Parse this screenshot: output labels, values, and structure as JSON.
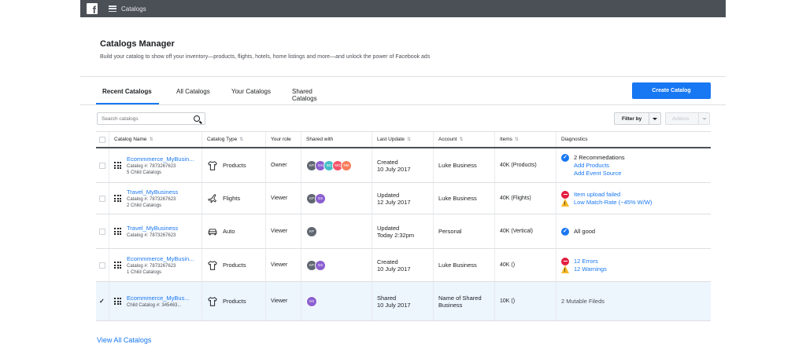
{
  "topbar": {
    "title": "Catalogs",
    "logo": "f"
  },
  "header": {
    "title": "Catalogs Manager",
    "subtitle": "Build your catalog to show off your inventory—products, flights, hotels, home listings and more—and unlock the power of Facebook ads"
  },
  "tabs": [
    "Recent Catalogs",
    "All Catalogs",
    "Your Catalogs",
    "Shared Catalogs"
  ],
  "active_tab": "Recent Catalogs",
  "create_button": "Create Catalog",
  "search": {
    "placeholder": "Search catalogs",
    "value": ""
  },
  "filter_label": "Filter by",
  "actions_label": "Actions",
  "columns": [
    "Catalog Name",
    "Catalog Type",
    "Your role",
    "Shared with",
    "Last Update",
    "Account",
    "Items",
    "Diagnostics"
  ],
  "sort_glyph": "⇅",
  "check_glyph": "✓",
  "rows": [
    {
      "name": "Ecommmerce_MyBusin...",
      "catalog_id": "Catalog #: 7873267623",
      "children": "5 Child Catalogs",
      "type": "Products",
      "type_icon": "shirt-icon",
      "role": "Owner",
      "shared": [
        {
          "i": "KP",
          "c": "#606770"
        },
        {
          "i": "GS",
          "c": "#8b5fd0"
        },
        {
          "i": "BC",
          "c": "#44bec7"
        },
        {
          "i": "MG",
          "c": "#f35369"
        },
        {
          "i": "NM",
          "c": "#fa7e5e"
        }
      ],
      "update_status": "Created",
      "update_date": "10 July 2017",
      "account": "Luke Business",
      "items": "40K (Products)",
      "diagnostics": [
        {
          "icon": "blue-check",
          "text": "2 Recommedations",
          "style": "text"
        },
        {
          "icon": "",
          "text": "Add Products",
          "style": "link"
        },
        {
          "icon": "",
          "text": "Add Event Source",
          "style": "link"
        }
      ],
      "checked": false
    },
    {
      "name": "Travel_MyBusiness",
      "catalog_id": "Catalog #: 7873267623",
      "children": "2 Child Catalogs",
      "type": "Flights",
      "type_icon": "airplane-icon",
      "role": "Viewer",
      "shared": [
        {
          "i": "KP",
          "c": "#606770"
        },
        {
          "i": "GS",
          "c": "#8b5fd0"
        }
      ],
      "update_status": "Updated",
      "update_date": "12 July 2017",
      "account": "Luke Business",
      "items": "40K (Flights)",
      "diagnostics": [
        {
          "icon": "red-minus",
          "text": "Item upload failed",
          "style": "link"
        },
        {
          "icon": "warning",
          "text": "Low Match-Rate (~45% W/W)",
          "style": "link"
        }
      ],
      "checked": false
    },
    {
      "name": "Travel_MyBusiness",
      "catalog_id": "Catalog #: 7873267623",
      "children": "",
      "type": "Auto",
      "type_icon": "car-icon",
      "role": "Viewer",
      "shared": [
        {
          "i": "KP",
          "c": "#606770"
        }
      ],
      "update_status": "Updated",
      "update_date": "Today 2:32pm",
      "account": "Personal",
      "items": "40K (Vertical)",
      "diagnostics": [
        {
          "icon": "blue-check",
          "text": "All good",
          "style": "text"
        }
      ],
      "checked": false
    },
    {
      "name": "Ecommmerce_MyBusin...",
      "catalog_id": "Catalog #: 7873267623",
      "children": "1 Child Catalogs",
      "type": "Products",
      "type_icon": "shirt-icon",
      "role": "Viewer",
      "shared": [
        {
          "i": "KP",
          "c": "#606770"
        },
        {
          "i": "GS",
          "c": "#8b5fd0"
        }
      ],
      "update_status": "Created",
      "update_date": "10 July 2017",
      "account": "Luke Business",
      "items": "40K ()",
      "diagnostics": [
        {
          "icon": "red-minus",
          "text": "12 Errors",
          "style": "link"
        },
        {
          "icon": "warning",
          "text": "12 Warnings",
          "style": "link"
        }
      ],
      "checked": false
    },
    {
      "name": "Ecommmerce_MyBus...",
      "catalog_id": "Child Catalog #: 345463...",
      "children": "",
      "type": "Products",
      "type_icon": "shirt-icon",
      "role": "Viewer",
      "shared": [
        {
          "i": "GS",
          "c": "#8b5fd0"
        }
      ],
      "update_status": "Shared",
      "update_date": "10 July 2017",
      "account": "Name of Shared Business",
      "items": "10K ()",
      "diagnostics": [
        {
          "icon": "",
          "text": "2 Mutable Fileds",
          "style": "muted"
        }
      ],
      "checked": true
    }
  ],
  "view_all": "View All Catalogs"
}
